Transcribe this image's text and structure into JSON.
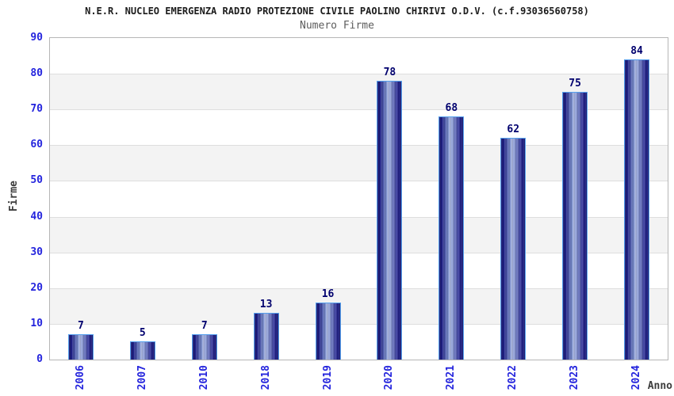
{
  "chart_data": {
    "type": "bar",
    "title": "N.E.R. NUCLEO EMERGENZA RADIO PROTEZIONE CIVILE PAOLINO CHIRIVI O.D.V. (c.f.93036560758)",
    "subtitle": "Numero Firme",
    "categories": [
      "2006",
      "2007",
      "2010",
      "2018",
      "2019",
      "2020",
      "2021",
      "2022",
      "2023",
      "2024"
    ],
    "values": [
      7,
      5,
      7,
      13,
      16,
      78,
      68,
      62,
      75,
      84
    ],
    "xlabel": "Anno",
    "ylabel": "Firme",
    "ylim": [
      0,
      90
    ],
    "yticks": [
      0,
      10,
      20,
      30,
      40,
      50,
      60,
      70,
      80,
      90
    ],
    "grid": true,
    "legend": "none",
    "colors": {
      "band_white": "#ffffff",
      "band_gray": "#f3f3f3",
      "gridline": "#dedede",
      "plot_border": "#b6b6b6",
      "tick_label": "#2424dd",
      "value_label": "#00006e",
      "bar_border": "#55a0ee",
      "bar_edge": "#10106a",
      "bar_highlight": "#b0bce6",
      "axis_title": "#3d3d3d"
    }
  }
}
